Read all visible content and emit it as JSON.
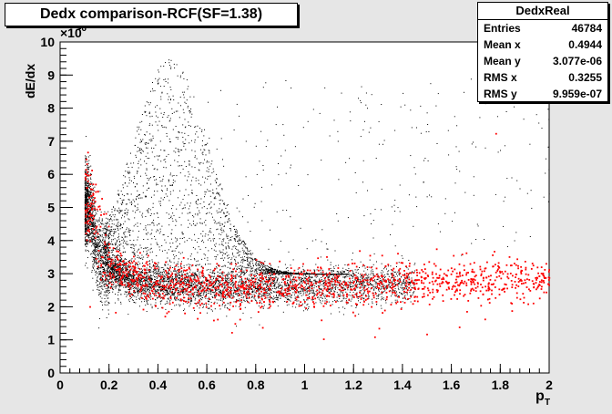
{
  "chart_data": {
    "type": "scatter",
    "title": "Dedx comparison-RCF(SF=1.38)",
    "xlabel_main": "p",
    "xlabel_sub": "T",
    "ylabel": "dE/dx",
    "y_exponent": "×10",
    "y_exponent_power": "-6",
    "xlim": [
      0,
      2
    ],
    "ylim": [
      0,
      10
    ],
    "x_ticks": [
      "0",
      "0.2",
      "0.4",
      "0.6",
      "0.8",
      "1",
      "1.2",
      "1.4",
      "1.6",
      "1.8",
      "2"
    ],
    "y_ticks": [
      "0",
      "1",
      "2",
      "3",
      "4",
      "5",
      "6",
      "7",
      "8",
      "9",
      "10"
    ],
    "grid": false,
    "series": [
      {
        "color": "#000000",
        "band_description_points": [
          [
            0.12,
            5.0
          ],
          [
            0.15,
            3.6
          ],
          [
            0.2,
            3.1
          ],
          [
            0.3,
            2.8
          ],
          [
            0.4,
            2.7
          ],
          [
            0.6,
            2.6
          ],
          [
            0.8,
            2.6
          ],
          [
            1.0,
            2.6
          ],
          [
            1.2,
            2.7
          ]
        ]
      },
      {
        "color": "#ff0000",
        "band_description_points": [
          [
            0.12,
            5.2
          ],
          [
            0.2,
            3.2
          ],
          [
            0.4,
            2.7
          ],
          [
            0.8,
            2.6
          ],
          [
            1.2,
            2.7
          ],
          [
            1.6,
            2.8
          ],
          [
            2.0,
            2.9
          ]
        ]
      }
    ]
  },
  "stats": {
    "title": "DedxReal",
    "rows": [
      {
        "label": "Entries",
        "value": "46784"
      },
      {
        "label": "Mean x",
        "value": "0.4944"
      },
      {
        "label": "Mean y",
        "value": "3.077e-06"
      },
      {
        "label": "RMS x",
        "value": "0.3255"
      },
      {
        "label": "RMS y",
        "value": "9.959e-07"
      }
    ]
  },
  "colors": {
    "canvas": "#e6e6e6",
    "frame": "#ffffff",
    "black_markers": "#000000",
    "red_markers": "#ff0000"
  }
}
